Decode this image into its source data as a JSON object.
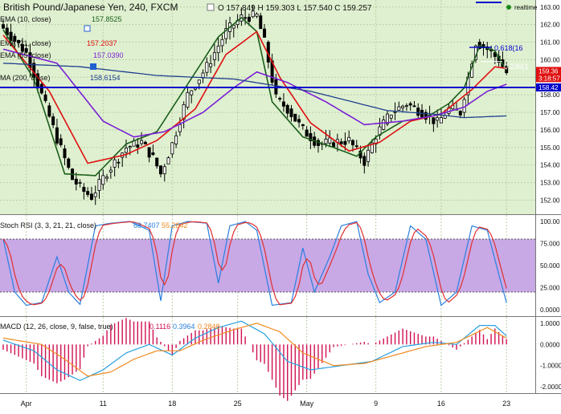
{
  "header": {
    "title": "British Pound/Japanese Yen, 240, FXCM",
    "ohlc": "O 157.849  H 159.303  L 157.540  C 159.257",
    "realtime": "realtime"
  },
  "colors": {
    "bg": "#dff0d0",
    "grid": "#b9cfa8",
    "candle": "#000000",
    "ema10": "#1a5e1a",
    "ema21": "#e01010",
    "ema55": "#7a1fd6",
    "ma200": "#1f3f8f",
    "hline": "#0000cc",
    "stoch_k": "#2a7fe0",
    "stoch_d": "#e03030",
    "stoch_band": "#c9a8e6",
    "macd": "#2a9fe0",
    "signal": "#f08a20",
    "hist": "#d01050"
  },
  "legend": [
    {
      "label": "EMA (10, close)",
      "value": "157.8525",
      "color": "#1a5e1a"
    },
    {
      "label": "EMA (21, close)",
      "value": "157.2037",
      "color": "#e01010"
    },
    {
      "label": "EMA (55, close)",
      "value": "157.0390",
      "color": "#7a1fd6"
    },
    {
      "label": "MA (200, close)",
      "value": "158.6154",
      "color": "#1f3f8f"
    }
  ],
  "price_axis": {
    "ticks": [
      "163.00",
      "162.00",
      "161.00",
      "160.00",
      "159.00",
      "158.00",
      "157.00",
      "156.00",
      "155.00",
      "154.00",
      "153.00",
      "152.00"
    ],
    "tags": [
      {
        "text": "159.36",
        "color": "#e01010"
      },
      {
        "text": "3:18:57",
        "color": "#e01010"
      },
      {
        "text": "158.42",
        "color": "#0000cc"
      }
    ]
  },
  "fib": [
    {
      "label": "0.618(16",
      "color": "#0000cc"
    },
    {
      "label": "0.236(1",
      "color": "#ffffff"
    }
  ],
  "stoch": {
    "title": "Stoch RSI (3, 3, 21, 21, close)",
    "k_value": "68.7407",
    "d_value": "55.2842",
    "ticks": [
      "100.00",
      "75.000",
      "50.000",
      "25.000",
      "0.0000"
    ]
  },
  "macd": {
    "title": "MACD (12, 26, close, 9, false, true)",
    "hist_value": "0.1116",
    "macd_value": "0.3964",
    "signal_value": "0.2848",
    "ticks": [
      "1.0000",
      "0.0000",
      "-1.0000",
      "-2.0000"
    ]
  },
  "x_axis": {
    "labels": [
      "Apr",
      "11",
      "18",
      "25",
      "May",
      "9",
      "16",
      "23"
    ]
  },
  "chart_data": [
    {
      "type": "candlestick",
      "title": "British Pound/Japanese Yen, 240, FXCM",
      "ylim": [
        151.2,
        163.4
      ],
      "x": [
        "Apr",
        "11",
        "18",
        "25",
        "May",
        "9",
        "16",
        "23"
      ],
      "horizontal_line": 158.42,
      "series": [
        {
          "name": "EMA (10, close)",
          "key_points": [
            [
              0,
              161.7
            ],
            [
              8,
              158.9
            ],
            [
              16,
              153.5
            ],
            [
              24,
              153.4
            ],
            [
              32,
              155.2
            ],
            [
              40,
              155.9
            ],
            [
              48,
              158.6
            ],
            [
              56,
              161.3
            ],
            [
              62,
              162.4
            ],
            [
              66,
              161.6
            ],
            [
              70,
              157.6
            ],
            [
              78,
              155.6
            ],
            [
              86,
              155.0
            ],
            [
              92,
              154.5
            ],
            [
              97,
              155.6
            ],
            [
              104,
              156.5
            ],
            [
              110,
              156.7
            ],
            [
              116,
              157.5
            ],
            [
              120,
              158.4
            ],
            [
              124,
              160.8
            ],
            [
              128,
              160.5
            ],
            [
              131,
              159.4
            ]
          ]
        },
        {
          "name": "EMA (21, close)",
          "key_points": [
            [
              0,
              161.4
            ],
            [
              12,
              158.2
            ],
            [
              22,
              154.1
            ],
            [
              32,
              154.6
            ],
            [
              40,
              155.4
            ],
            [
              50,
              157.2
            ],
            [
              58,
              160.3
            ],
            [
              66,
              161.6
            ],
            [
              72,
              159.0
            ],
            [
              80,
              156.4
            ],
            [
              90,
              154.8
            ],
            [
              98,
              155.3
            ],
            [
              106,
              156.5
            ],
            [
              114,
              156.9
            ],
            [
              122,
              158.3
            ],
            [
              128,
              159.6
            ],
            [
              131,
              159.5
            ]
          ]
        },
        {
          "name": "EMA (55, close)",
          "key_points": [
            [
              0,
              160.6
            ],
            [
              14,
              159.8
            ],
            [
              26,
              156.5
            ],
            [
              34,
              155.6
            ],
            [
              42,
              155.9
            ],
            [
              52,
              157.0
            ],
            [
              60,
              158.4
            ],
            [
              66,
              159.3
            ],
            [
              74,
              158.7
            ],
            [
              84,
              157.6
            ],
            [
              94,
              156.3
            ],
            [
              104,
              156.5
            ],
            [
              112,
              156.8
            ],
            [
              120,
              157.3
            ],
            [
              126,
              158.2
            ],
            [
              131,
              158.6
            ]
          ]
        },
        {
          "name": "MA (200, close)",
          "key_points": [
            [
              0,
              159.8
            ],
            [
              20,
              159.6
            ],
            [
              40,
              159.1
            ],
            [
              60,
              158.9
            ],
            [
              80,
              158.2
            ],
            [
              100,
              157.1
            ],
            [
              112,
              156.9
            ],
            [
              120,
              156.7
            ],
            [
              131,
              156.8
            ]
          ]
        }
      ],
      "price_key_points": [
        [
          0,
          161.8
        ],
        [
          6,
          160.4
        ],
        [
          10,
          158.0
        ],
        [
          14,
          155.5
        ],
        [
          18,
          153.2
        ],
        [
          21,
          152.5
        ],
        [
          23,
          152.2
        ],
        [
          27,
          153.6
        ],
        [
          32,
          155.0
        ],
        [
          36,
          155.3
        ],
        [
          39,
          154.4
        ],
        [
          41,
          153.5
        ],
        [
          44,
          155.2
        ],
        [
          48,
          158.0
        ],
        [
          53,
          159.6
        ],
        [
          58,
          161.6
        ],
        [
          62,
          162.4
        ],
        [
          66,
          162.5
        ],
        [
          68,
          161.0
        ],
        [
          71,
          157.8
        ],
        [
          74,
          157.2
        ],
        [
          78,
          156.0
        ],
        [
          82,
          155.2
        ],
        [
          86,
          155.3
        ],
        [
          90,
          155.4
        ],
        [
          94,
          154.2
        ],
        [
          97,
          155.7
        ],
        [
          101,
          157.0
        ],
        [
          105,
          157.5
        ],
        [
          109,
          157.0
        ],
        [
          113,
          156.4
        ],
        [
          116,
          157.2
        ],
        [
          119,
          157.0
        ],
        [
          123,
          161.0
        ],
        [
          126,
          160.6
        ],
        [
          129,
          160.0
        ],
        [
          131,
          159.26
        ]
      ]
    },
    {
      "type": "line",
      "title": "Stoch RSI (3, 3, 21, 21, close)",
      "ylim": [
        0,
        100
      ],
      "bands": [
        20,
        80
      ],
      "series": [
        {
          "name": "%K",
          "last": 68.7407
        },
        {
          "name": "%D",
          "last": 55.2842
        }
      ]
    },
    {
      "type": "line",
      "title": "MACD (12, 26, close, 9, false, true)",
      "ylim": [
        -2.3,
        1.3
      ],
      "series": [
        {
          "name": "histogram",
          "last": 0.1116
        },
        {
          "name": "MACD",
          "last": 0.3964
        },
        {
          "name": "signal",
          "last": 0.2848
        }
      ]
    }
  ]
}
